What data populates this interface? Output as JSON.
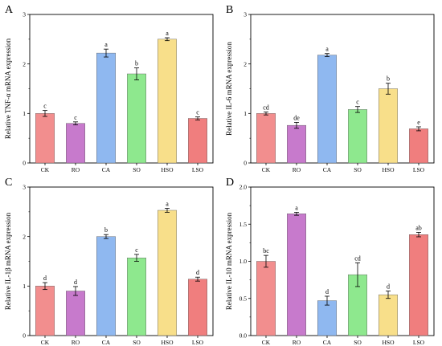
{
  "palette": [
    "#F28E8E",
    "#C77ACC",
    "#8FB8F0",
    "#8EE88E",
    "#F8DF8A",
    "#F07E7E"
  ],
  "chart_data": [
    {
      "panel": "A",
      "type": "bar",
      "ylabel": "Relative TNF-α mRNA expression",
      "categories": [
        "CK",
        "RO",
        "CA",
        "SO",
        "HSO",
        "LSO"
      ],
      "values": [
        1.0,
        0.8,
        2.22,
        1.8,
        2.5,
        0.9
      ],
      "errors": [
        0.06,
        0.03,
        0.08,
        0.12,
        0.03,
        0.03
      ],
      "letters": [
        "c",
        "c",
        "a",
        "b",
        "a",
        "c"
      ],
      "ylim": [
        0,
        3
      ],
      "yticks": [
        0,
        1,
        2,
        3
      ],
      "ytick_labels": [
        "0",
        "1",
        "2",
        "3"
      ]
    },
    {
      "panel": "B",
      "type": "bar",
      "ylabel": "Relative IL-6 mRNA expression",
      "categories": [
        "CK",
        "RO",
        "CA",
        "SO",
        "HSO",
        "LSO"
      ],
      "values": [
        1.0,
        0.76,
        2.18,
        1.08,
        1.5,
        0.69
      ],
      "errors": [
        0.03,
        0.06,
        0.03,
        0.06,
        0.11,
        0.04
      ],
      "letters": [
        "cd",
        "de",
        "a",
        "c",
        "b",
        "e"
      ],
      "ylim": [
        0,
        3
      ],
      "yticks": [
        0,
        1,
        2,
        3
      ],
      "ytick_labels": [
        "0",
        "1",
        "2",
        "3"
      ]
    },
    {
      "panel": "C",
      "type": "bar",
      "ylabel": "Relative IL-1β mRNA expression",
      "categories": [
        "CK",
        "RO",
        "CA",
        "SO",
        "HSO",
        "LSO"
      ],
      "values": [
        1.0,
        0.9,
        2.0,
        1.57,
        2.53,
        1.14
      ],
      "errors": [
        0.07,
        0.09,
        0.04,
        0.07,
        0.04,
        0.04
      ],
      "letters": [
        "d",
        "d",
        "b",
        "c",
        "a",
        "d"
      ],
      "ylim": [
        0,
        3
      ],
      "yticks": [
        0,
        1,
        2,
        3
      ],
      "ytick_labels": [
        "0",
        "1",
        "2",
        "3"
      ]
    },
    {
      "panel": "D",
      "type": "bar",
      "ylabel": "Relative IL-10 mRNA expression",
      "categories": [
        "CK",
        "RO",
        "CA",
        "SO",
        "HSO",
        "LSO"
      ],
      "values": [
        1.0,
        1.64,
        0.47,
        0.82,
        0.55,
        1.36
      ],
      "errors": [
        0.08,
        0.02,
        0.06,
        0.16,
        0.05,
        0.03
      ],
      "letters": [
        "bc",
        "a",
        "d",
        "cd",
        "d",
        "ab"
      ],
      "ylim": [
        0,
        2
      ],
      "yticks": [
        0,
        0.5,
        1,
        1.5,
        2
      ],
      "ytick_labels": [
        "0.0",
        "0.5",
        "1.0",
        "1.5",
        "2.0"
      ]
    }
  ]
}
